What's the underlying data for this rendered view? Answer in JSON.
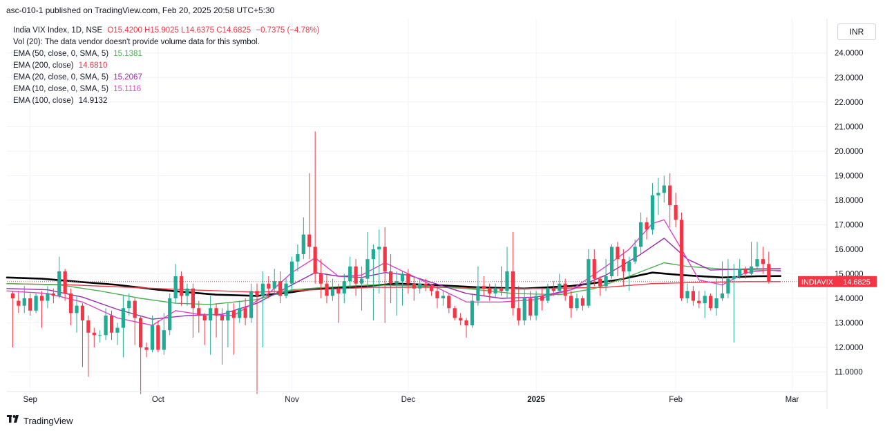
{
  "header": {
    "published_line": "asc-010-1 published on TradingView.com, Feb 20, 2025 20:58 UTC+5:30"
  },
  "legend": {
    "symbol_line": "India VIX Index, 1D, NSE",
    "ohlc": "O15.4200 H15.9025 L14.6375 C14.6825",
    "change": "−0.7375 (−4.78%)",
    "volume": "Vol (20): The data vendor doesn't provide volume data for this symbol.",
    "ema50": {
      "label": "EMA (50, close, 0, SMA, 5)",
      "value": "15.1381",
      "color": "#4caf50"
    },
    "ema200": {
      "label": "EMA (200, close)",
      "value": "14.6810",
      "color": "#f23645"
    },
    "ema20": {
      "label": "EMA (20, close, 0, SMA, 5)",
      "value": "15.2067",
      "color": "#9c27b0"
    },
    "ema10": {
      "label": "EMA (10, close, 0, SMA, 5)",
      "value": "15.1116",
      "color": "#e040c8"
    },
    "ema100": {
      "label": "EMA (100, close)",
      "value": "14.9132",
      "color": "#000000"
    }
  },
  "currency_button": "INR",
  "price_tag": {
    "symbol": "INDIAVIX",
    "value": "14.6825"
  },
  "footer": {
    "brand": "TradingView"
  },
  "colors": {
    "up": "#22ab94",
    "down": "#f23645",
    "grid": "#f0f3fa",
    "axis_text": "#131722"
  },
  "chart_data": {
    "type": "candlestick",
    "title": "India VIX Index, 1D, NSE",
    "ylim": [
      10.2,
      25.4
    ],
    "y_ticks": [
      "11.0000",
      "12.0000",
      "13.0000",
      "14.0000",
      "15.0000",
      "16.0000",
      "17.0000",
      "18.0000",
      "19.0000",
      "20.0000",
      "21.0000",
      "22.0000",
      "23.0000",
      "24.0000"
    ],
    "y_tick_values": [
      11,
      12,
      13,
      14,
      15,
      16,
      17,
      18,
      19,
      20,
      21,
      22,
      23,
      24
    ],
    "x_labels": [
      {
        "label": "Sep",
        "day": 3
      },
      {
        "label": "Oct",
        "day": 25
      },
      {
        "label": "Nov",
        "day": 48
      },
      {
        "label": "Dec",
        "day": 68
      },
      {
        "label": "2025",
        "day": 90
      },
      {
        "label": "Feb",
        "day": 114
      },
      {
        "label": "Mar",
        "day": 134
      }
    ],
    "day_range": [
      -1,
      140
    ],
    "candles": [
      [
        14.2,
        14.0,
        14.3,
        12.0
      ],
      [
        13.9,
        13.7,
        14.3,
        13.4
      ],
      [
        13.7,
        14.0,
        14.5,
        13.4
      ],
      [
        14.0,
        13.5,
        14.2,
        13.3
      ],
      [
        13.5,
        14.1,
        14.2,
        13.4
      ],
      [
        14.1,
        13.9,
        14.3,
        12.8
      ],
      [
        13.9,
        14.2,
        14.5,
        13.6
      ],
      [
        14.2,
        14.1,
        14.4,
        13.8
      ],
      [
        14.1,
        15.1,
        15.7,
        14.0
      ],
      [
        15.1,
        14.2,
        15.2,
        13.9
      ],
      [
        14.2,
        13.4,
        14.4,
        12.9
      ],
      [
        13.4,
        13.7,
        14.1,
        12.6
      ],
      [
        13.7,
        13.1,
        13.8,
        11.2
      ],
      [
        13.1,
        12.6,
        13.3,
        10.8
      ],
      [
        12.6,
        12.5,
        12.8,
        12.0
      ],
      [
        12.5,
        12.5,
        12.7,
        12.2
      ],
      [
        12.5,
        13.3,
        13.6,
        12.3
      ],
      [
        13.3,
        12.6,
        13.5,
        12.3
      ],
      [
        12.6,
        12.8,
        13.0,
        12.1
      ],
      [
        12.8,
        13.6,
        14.1,
        11.6
      ],
      [
        13.6,
        13.9,
        14.2,
        13.3
      ],
      [
        13.9,
        13.2,
        14.0,
        12.1
      ],
      [
        13.2,
        12.0,
        13.3,
        10.1
      ],
      [
        12.0,
        11.9,
        12.2,
        11.6
      ],
      [
        11.9,
        12.9,
        13.3,
        11.8
      ],
      [
        12.9,
        11.9,
        13.1,
        11.8
      ],
      [
        11.9,
        12.7,
        13.4,
        11.7
      ],
      [
        12.7,
        14.0,
        14.2,
        12.5
      ],
      [
        14.0,
        14.9,
        15.4,
        13.8
      ],
      [
        14.9,
        14.1,
        15.1,
        13.7
      ],
      [
        14.1,
        14.4,
        14.6,
        13.7
      ],
      [
        14.4,
        13.6,
        14.6,
        12.4
      ],
      [
        13.6,
        13.3,
        13.9,
        12.6
      ],
      [
        13.3,
        13.1,
        13.4,
        12.1
      ],
      [
        13.1,
        13.6,
        14.1,
        11.7
      ],
      [
        13.6,
        13.3,
        13.8,
        12.4
      ],
      [
        13.3,
        13.1,
        13.6,
        11.3
      ],
      [
        13.1,
        13.5,
        13.8,
        12.0
      ],
      [
        13.5,
        13.2,
        13.8,
        11.7
      ],
      [
        13.2,
        13.6,
        13.9,
        13.0
      ],
      [
        13.6,
        13.2,
        14.0,
        12.9
      ],
      [
        13.2,
        14.3,
        14.6,
        13.0
      ],
      [
        14.3,
        14.1,
        14.6,
        10.1
      ],
      [
        14.1,
        14.6,
        15.1,
        12.0
      ],
      [
        14.6,
        14.4,
        14.9,
        14.0
      ],
      [
        14.4,
        14.7,
        15.2,
        14.2
      ],
      [
        14.7,
        14.1,
        15.1,
        13.8
      ],
      [
        14.1,
        14.6,
        14.8,
        14.0
      ],
      [
        14.6,
        15.5,
        15.7,
        14.3
      ],
      [
        15.5,
        15.8,
        16.2,
        15.1
      ],
      [
        15.8,
        16.6,
        17.3,
        15.6
      ],
      [
        16.6,
        16.1,
        19.1,
        15.6
      ],
      [
        16.1,
        15.0,
        20.8,
        14.6
      ],
      [
        15.0,
        14.6,
        15.6,
        14.0
      ],
      [
        14.6,
        14.1,
        15.0,
        13.8
      ],
      [
        14.1,
        14.4,
        14.8,
        13.9
      ],
      [
        14.4,
        14.2,
        14.6,
        13.0
      ],
      [
        14.2,
        14.7,
        15.0,
        13.8
      ],
      [
        14.7,
        15.3,
        15.7,
        14.4
      ],
      [
        15.3,
        14.6,
        15.6,
        14.1
      ],
      [
        14.6,
        14.8,
        15.3,
        13.5
      ],
      [
        14.8,
        15.6,
        16.7,
        14.4
      ],
      [
        15.6,
        16.0,
        16.2,
        13.1
      ],
      [
        16.0,
        16.1,
        16.8,
        14.2
      ],
      [
        16.1,
        15.1,
        16.9,
        13.0
      ],
      [
        15.1,
        14.6,
        15.8,
        13.8
      ],
      [
        14.6,
        14.7,
        15.1,
        13.3
      ],
      [
        14.7,
        15.0,
        15.1,
        13.7
      ],
      [
        15.0,
        14.6,
        15.2,
        14.2
      ],
      [
        14.6,
        14.4,
        14.9,
        13.9
      ],
      [
        14.4,
        14.6,
        14.8,
        14.2
      ],
      [
        14.6,
        14.5,
        14.8,
        14.3
      ],
      [
        14.5,
        14.3,
        14.6,
        14.1
      ],
      [
        14.3,
        14.0,
        14.5,
        13.6
      ],
      [
        14.0,
        14.1,
        14.3,
        13.7
      ],
      [
        14.1,
        13.6,
        14.2,
        13.4
      ],
      [
        13.6,
        13.2,
        13.7,
        13.1
      ],
      [
        13.2,
        13.1,
        13.4,
        12.9
      ],
      [
        13.1,
        12.9,
        13.2,
        12.4
      ],
      [
        12.9,
        13.9,
        14.2,
        12.8
      ],
      [
        13.9,
        14.5,
        15.3,
        13.7
      ],
      [
        14.5,
        14.4,
        14.9,
        14.1
      ],
      [
        14.4,
        14.2,
        14.6,
        13.9
      ],
      [
        14.2,
        14.4,
        14.6,
        14.0
      ],
      [
        14.4,
        14.3,
        15.3,
        14.1
      ],
      [
        14.3,
        15.1,
        16.1,
        14.0
      ],
      [
        15.1,
        13.6,
        16.7,
        13.3
      ],
      [
        13.6,
        13.1,
        14.5,
        12.9
      ],
      [
        13.1,
        14.0,
        14.4,
        12.9
      ],
      [
        14.0,
        13.3,
        14.3,
        13.1
      ],
      [
        13.3,
        14.1,
        14.3,
        13.1
      ],
      [
        14.1,
        13.9,
        14.4,
        13.5
      ],
      [
        13.9,
        14.4,
        14.6,
        13.8
      ],
      [
        14.4,
        14.3,
        14.7,
        14.1
      ],
      [
        14.3,
        14.6,
        15.0,
        14.2
      ],
      [
        14.6,
        14.1,
        14.8,
        13.9
      ],
      [
        14.1,
        13.6,
        14.3,
        13.2
      ],
      [
        13.6,
        14.0,
        14.2,
        13.5
      ],
      [
        14.0,
        13.7,
        14.1,
        13.5
      ],
      [
        13.7,
        15.6,
        16.0,
        13.6
      ],
      [
        15.6,
        14.8,
        16.0,
        14.5
      ],
      [
        14.8,
        14.5,
        14.9,
        14.1
      ],
      [
        14.5,
        14.9,
        15.6,
        14.3
      ],
      [
        14.9,
        16.1,
        16.2,
        14.8
      ],
      [
        16.1,
        15.6,
        16.3,
        14.9
      ],
      [
        15.6,
        15.1,
        16.0,
        14.5
      ],
      [
        15.1,
        15.5,
        15.7,
        14.3
      ],
      [
        15.5,
        16.1,
        16.4,
        15.4
      ],
      [
        16.1,
        17.1,
        17.5,
        15.8
      ],
      [
        17.1,
        16.8,
        17.3,
        16.4
      ],
      [
        16.8,
        18.2,
        18.7,
        16.6
      ],
      [
        18.2,
        18.3,
        18.9,
        17.4
      ],
      [
        18.3,
        18.6,
        19.0,
        17.9
      ],
      [
        18.6,
        17.8,
        19.1,
        16.9
      ],
      [
        17.8,
        17.2,
        18.3,
        16.9
      ],
      [
        17.2,
        14.0,
        17.5,
        13.9
      ],
      [
        14.0,
        14.3,
        14.6,
        13.8
      ],
      [
        14.3,
        13.9,
        14.5,
        13.7
      ],
      [
        13.9,
        13.8,
        14.3,
        13.6
      ],
      [
        13.8,
        14.1,
        14.3,
        13.2
      ],
      [
        14.1,
        13.6,
        14.2,
        13.5
      ],
      [
        13.6,
        14.0,
        14.8,
        13.3
      ],
      [
        14.0,
        14.2,
        15.5,
        13.9
      ],
      [
        14.2,
        14.8,
        15.6,
        14.0
      ],
      [
        14.8,
        14.9,
        15.4,
        12.2
      ],
      [
        14.9,
        15.2,
        15.6,
        14.8
      ],
      [
        15.2,
        15.0,
        15.3,
        14.8
      ],
      [
        15.0,
        15.3,
        16.3,
        14.9
      ],
      [
        15.3,
        15.6,
        16.3,
        15.2
      ],
      [
        15.6,
        15.4,
        16.1,
        15.0
      ],
      [
        15.4,
        14.7,
        15.9,
        14.6
      ]
    ],
    "series": [
      {
        "name": "EMA (100, close)",
        "color": "#000000",
        "width": 2.6,
        "points": [
          [
            -1,
            14.85
          ],
          [
            5,
            14.8
          ],
          [
            10,
            14.7
          ],
          [
            18,
            14.55
          ],
          [
            25,
            14.35
          ],
          [
            35,
            14.15
          ],
          [
            42,
            14.1
          ],
          [
            48,
            14.25
          ],
          [
            52,
            14.4
          ],
          [
            58,
            14.45
          ],
          [
            66,
            14.6
          ],
          [
            72,
            14.55
          ],
          [
            80,
            14.45
          ],
          [
            88,
            14.4
          ],
          [
            96,
            14.5
          ],
          [
            104,
            14.75
          ],
          [
            110,
            15.05
          ],
          [
            115,
            14.95
          ],
          [
            122,
            14.85
          ],
          [
            128,
            14.9
          ],
          [
            132,
            14.91
          ]
        ]
      },
      {
        "name": "EMA (200, close)",
        "color": "#f23645",
        "width": 1.4,
        "points": [
          [
            -1,
            14.6
          ],
          [
            10,
            14.55
          ],
          [
            20,
            14.45
          ],
          [
            30,
            14.35
          ],
          [
            42,
            14.25
          ],
          [
            52,
            14.35
          ],
          [
            62,
            14.45
          ],
          [
            72,
            14.45
          ],
          [
            82,
            14.4
          ],
          [
            92,
            14.4
          ],
          [
            102,
            14.45
          ],
          [
            110,
            14.6
          ],
          [
            118,
            14.65
          ],
          [
            126,
            14.68
          ],
          [
            132,
            14.68
          ]
        ]
      },
      {
        "name": "EMA (50, close, 0, SMA, 5)",
        "color": "#4caf50",
        "width": 1.4,
        "points": [
          [
            -1,
            14.6
          ],
          [
            8,
            14.55
          ],
          [
            15,
            14.3
          ],
          [
            22,
            14.0
          ],
          [
            28,
            13.8
          ],
          [
            34,
            13.75
          ],
          [
            42,
            13.95
          ],
          [
            48,
            14.35
          ],
          [
            54,
            14.45
          ],
          [
            62,
            14.55
          ],
          [
            70,
            14.5
          ],
          [
            78,
            14.4
          ],
          [
            86,
            14.2
          ],
          [
            94,
            14.15
          ],
          [
            100,
            14.4
          ],
          [
            106,
            14.9
          ],
          [
            112,
            15.45
          ],
          [
            116,
            15.3
          ],
          [
            122,
            15.2
          ],
          [
            128,
            15.15
          ],
          [
            132,
            15.14
          ]
        ]
      },
      {
        "name": "EMA (20, close, 0, SMA, 5)",
        "color": "#9c27b0",
        "width": 1.4,
        "points": [
          [
            -1,
            14.4
          ],
          [
            6,
            14.35
          ],
          [
            12,
            14.05
          ],
          [
            18,
            13.55
          ],
          [
            24,
            13.15
          ],
          [
            30,
            13.3
          ],
          [
            36,
            13.35
          ],
          [
            42,
            13.8
          ],
          [
            48,
            14.55
          ],
          [
            52,
            15.05
          ],
          [
            56,
            14.9
          ],
          [
            60,
            14.85
          ],
          [
            64,
            15.05
          ],
          [
            68,
            14.95
          ],
          [
            72,
            14.65
          ],
          [
            78,
            14.2
          ],
          [
            84,
            14.0
          ],
          [
            90,
            14.05
          ],
          [
            96,
            14.35
          ],
          [
            102,
            14.95
          ],
          [
            108,
            15.8
          ],
          [
            112,
            16.45
          ],
          [
            116,
            15.6
          ],
          [
            120,
            15.15
          ],
          [
            126,
            15.2
          ],
          [
            132,
            15.21
          ]
        ]
      },
      {
        "name": "EMA (10, close, 0, SMA, 5)",
        "color": "#e040c8",
        "width": 1.4,
        "points": [
          [
            -1,
            14.3
          ],
          [
            6,
            14.2
          ],
          [
            12,
            13.85
          ],
          [
            18,
            13.2
          ],
          [
            24,
            12.9
          ],
          [
            28,
            13.5
          ],
          [
            32,
            13.35
          ],
          [
            38,
            13.3
          ],
          [
            44,
            14.2
          ],
          [
            48,
            15.05
          ],
          [
            52,
            15.65
          ],
          [
            56,
            14.9
          ],
          [
            60,
            14.95
          ],
          [
            64,
            15.45
          ],
          [
            68,
            15.0
          ],
          [
            72,
            14.55
          ],
          [
            78,
            13.85
          ],
          [
            84,
            13.85
          ],
          [
            90,
            13.95
          ],
          [
            96,
            14.35
          ],
          [
            102,
            15.3
          ],
          [
            106,
            16.0
          ],
          [
            110,
            17.05
          ],
          [
            112,
            17.2
          ],
          [
            115,
            16.0
          ],
          [
            118,
            14.75
          ],
          [
            122,
            14.55
          ],
          [
            126,
            15.05
          ],
          [
            130,
            15.15
          ],
          [
            132,
            15.11
          ]
        ]
      }
    ],
    "last_price": 14.6825
  }
}
